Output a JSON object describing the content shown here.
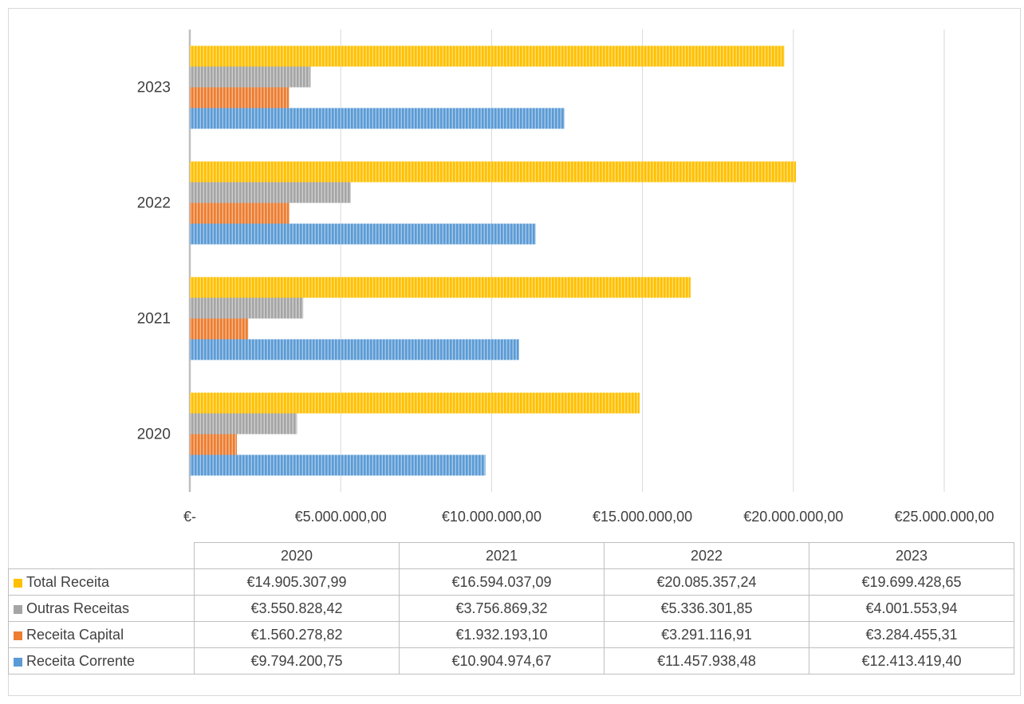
{
  "colors": {
    "Total Receita": "#FFC000",
    "Outras Receitas": "#A5A5A5",
    "Receita Capital": "#ED7D31",
    "Receita Corrente": "#5B9BD5"
  },
  "chart_data": {
    "type": "bar",
    "orientation": "horizontal",
    "categories": [
      "2020",
      "2021",
      "2022",
      "2023"
    ],
    "series": [
      {
        "name": "Receita Corrente",
        "values": [
          9794200.75,
          10904974.67,
          11457938.48,
          12413419.4
        ]
      },
      {
        "name": "Receita Capital",
        "values": [
          1560278.82,
          1932193.1,
          3291116.91,
          3284455.31
        ]
      },
      {
        "name": "Outras Receitas",
        "values": [
          3550828.42,
          3756869.32,
          5336301.85,
          4001553.94
        ]
      },
      {
        "name": "Total Receita",
        "values": [
          14905307.99,
          16594037.09,
          20085357.24,
          19699428.65
        ]
      }
    ],
    "xlim": [
      0,
      25000000
    ],
    "x_ticks": [
      0,
      5000000,
      10000000,
      15000000,
      20000000,
      25000000
    ],
    "x_tick_labels": [
      "€-",
      "€5.000.000,00",
      "€10.000.000,00",
      "€15.000.000,00",
      "€20.000.000,00",
      "€25.000.000,00"
    ],
    "grid": true,
    "legend": "data-table"
  },
  "data_table": {
    "columns": [
      "2020",
      "2021",
      "2022",
      "2023"
    ],
    "rows": [
      {
        "label": "Total Receita",
        "values": [
          "€14.905.307,99",
          "€16.594.037,09",
          "€20.085.357,24",
          "€19.699.428,65"
        ]
      },
      {
        "label": "Outras Receitas",
        "values": [
          "€3.550.828,42",
          "€3.756.869,32",
          "€5.336.301,85",
          "€4.001.553,94"
        ]
      },
      {
        "label": "Receita Capital",
        "values": [
          "€1.560.278,82",
          "€1.932.193,10",
          "€3.291.116,91",
          "€3.284.455,31"
        ]
      },
      {
        "label": "Receita Corrente",
        "values": [
          "€9.794.200,75",
          "€10.904.974,67",
          "€11.457.938,48",
          "€12.413.419,40"
        ]
      }
    ]
  }
}
